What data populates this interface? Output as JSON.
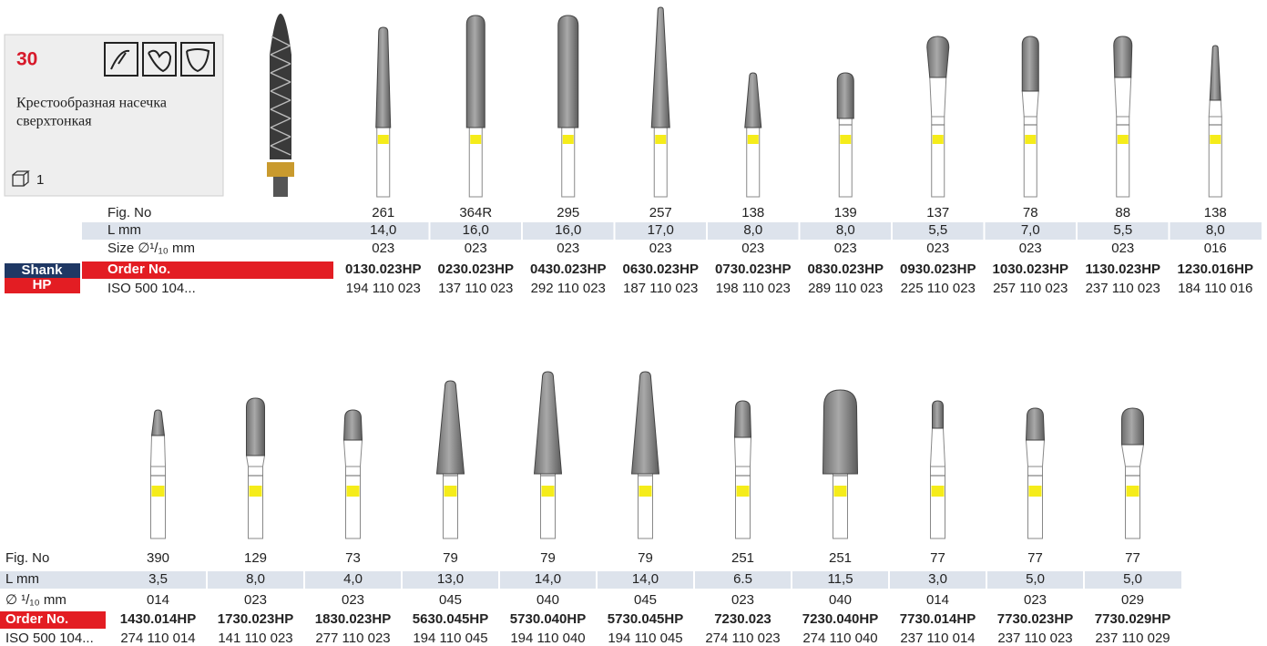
{
  "header": {
    "number": "30",
    "description": [
      "Крестообразная насечка",
      "сверхтонкая"
    ],
    "pack": "1"
  },
  "shank": {
    "label": "Shank",
    "type": "HP"
  },
  "tables": [
    {
      "row_labels": {
        "fig": "Fig. No",
        "length": "L mm",
        "size": "Size ∅¹/₁₀ mm",
        "order": "Order No.",
        "iso": "ISO 500 104..."
      },
      "columns": [
        {
          "fig": "261",
          "length": "14,0",
          "size": "023",
          "order": "0130.023HP",
          "iso": "194 110 023"
        },
        {
          "fig": "364R",
          "length": "16,0",
          "size": "023",
          "order": "0230.023HP",
          "iso": "137 110 023"
        },
        {
          "fig": "295",
          "length": "16,0",
          "size": "023",
          "order": "0430.023HP",
          "iso": "292 110 023"
        },
        {
          "fig": "257",
          "length": "17,0",
          "size": "023",
          "order": "0630.023HP",
          "iso": "187 110 023"
        },
        {
          "fig": "138",
          "length": "8,0",
          "size": "023",
          "order": "0730.023HP",
          "iso": "198 110 023"
        },
        {
          "fig": "139",
          "length": "8,0",
          "size": "023",
          "order": "0830.023HP",
          "iso": "289 110 023"
        },
        {
          "fig": "137",
          "length": "5,5",
          "size": "023",
          "order": "0930.023HP",
          "iso": "225 110 023"
        },
        {
          "fig": "78",
          "length": "7,0",
          "size": "023",
          "order": "1030.023HP",
          "iso": "257 110 023"
        },
        {
          "fig": "88",
          "length": "5,5",
          "size": "023",
          "order": "1130.023HP",
          "iso": "237 110 023"
        },
        {
          "fig": "138",
          "length": "8,0",
          "size": "016",
          "order": "1230.016HP",
          "iso": "184 110 016"
        }
      ]
    },
    {
      "row_labels": {
        "fig": "Fig. No",
        "length": "L mm",
        "size": "∅ ¹/₁₀ mm",
        "order": "Order No.",
        "iso": "ISO 500 104..."
      },
      "columns": [
        {
          "fig": "390",
          "length": "3,5",
          "size": "014",
          "order": "1430.014HP",
          "iso": "274 110 014"
        },
        {
          "fig": "129",
          "length": "8,0",
          "size": "023",
          "order": "1730.023HP",
          "iso": "141 110 023"
        },
        {
          "fig": "73",
          "length": "4,0",
          "size": "023",
          "order": "1830.023HP",
          "iso": "277 110 023"
        },
        {
          "fig": "79",
          "length": "13,0",
          "size": "045",
          "order": "5630.045HP",
          "iso": "194 110 045"
        },
        {
          "fig": "79",
          "length": "14,0",
          "size": "040",
          "order": "5730.040HP",
          "iso": "194 110 040"
        },
        {
          "fig": "79",
          "length": "14,0",
          "size": "045",
          "order": "5730.045HP",
          "iso": "194 110 045"
        },
        {
          "fig": "251",
          "length": "6.5",
          "size": "023",
          "order": "7230.023",
          "iso": "274 110 023"
        },
        {
          "fig": "251",
          "length": "11,5",
          "size": "040",
          "order": "7230.040HP",
          "iso": "274 110 040"
        },
        {
          "fig": "77",
          "length": "3,0",
          "size": "014",
          "order": "7730.014HP",
          "iso": "237 110 014"
        },
        {
          "fig": "77",
          "length": "5,0",
          "size": "023",
          "order": "7730.023HP",
          "iso": "237 110 023"
        },
        {
          "fig": "77",
          "length": "5,0",
          "size": "029",
          "order": "7730.029HP",
          "iso": "237 110 029"
        }
      ]
    }
  ]
}
